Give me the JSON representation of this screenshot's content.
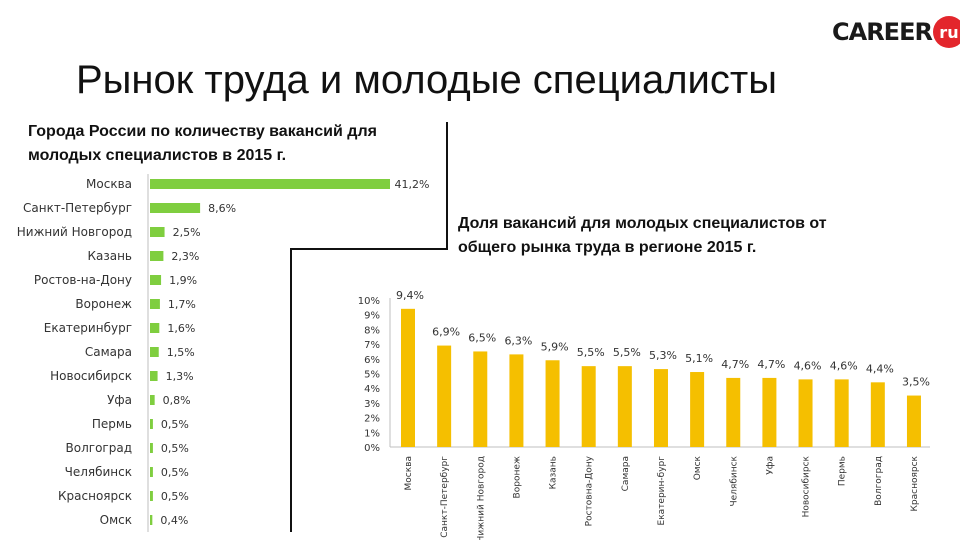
{
  "logo": {
    "text": "CAREER",
    "suffix": "ru"
  },
  "title": "Рынок труда и молодые специалисты",
  "colors": {
    "green": "#7fce3f",
    "yellow": "#f5bf00",
    "axis": "#bfbfbf",
    "red": "#e3262c"
  },
  "chart_data": [
    {
      "type": "bar",
      "orientation": "horizontal",
      "title": "Города России по количеству вакансий для молодых специалистов в 2015 г.",
      "categories": [
        "Москва",
        "Санкт-Петербург",
        "Нижний Новгород",
        "Казань",
        "Ростов-на-Дону",
        "Воронеж",
        "Екатеринбург",
        "Самара",
        "Новосибирск",
        "Уфа",
        "Пермь",
        "Волгоград",
        "Челябинск",
        "Красноярск",
        "Омск"
      ],
      "values": [
        41.2,
        8.6,
        2.5,
        2.3,
        1.9,
        1.7,
        1.6,
        1.5,
        1.3,
        0.8,
        0.5,
        0.5,
        0.5,
        0.5,
        0.4
      ],
      "value_labels": [
        "41,2%",
        "8,6%",
        "2,5%",
        "2,3%",
        "1,9%",
        "1,7%",
        "1,6%",
        "1,5%",
        "1,3%",
        "0,8%",
        "0,5%",
        "0,5%",
        "0,5%",
        "0,5%",
        "0,4%"
      ],
      "color": "#7fce3f"
    },
    {
      "type": "bar",
      "orientation": "vertical",
      "title": "Доля вакансий для молодых специалистов от общего рынка труда в регионе 2015 г.",
      "categories": [
        "Москва",
        "Санкт-Петербург",
        "Нижний Новгород",
        "Воронеж",
        "Казань",
        "Ростовна-Дону",
        "Самара",
        "Екатерин-бург",
        "Омск",
        "Челябинск",
        "Уфа",
        "Новосибирск",
        "Пермь",
        "Волгоград",
        "Красноярск"
      ],
      "values": [
        9.4,
        6.9,
        6.5,
        6.3,
        5.9,
        5.5,
        5.5,
        5.3,
        5.1,
        4.7,
        4.7,
        4.6,
        4.6,
        4.4,
        3.5
      ],
      "value_labels": [
        "9,4%",
        "6,9%",
        "6,5%",
        "6,3%",
        "5,9%",
        "5,5%",
        "5,5%",
        "5,3%",
        "5,1%",
        "4,7%",
        "4,7%",
        "4,6%",
        "4,6%",
        "4,4%",
        "3,5%"
      ],
      "ylim": [
        0,
        10
      ],
      "yticks": [
        "0%",
        "1%",
        "2%",
        "3%",
        "4%",
        "5%",
        "6%",
        "7%",
        "8%",
        "9%",
        "10%"
      ],
      "color": "#f5bf00"
    }
  ]
}
